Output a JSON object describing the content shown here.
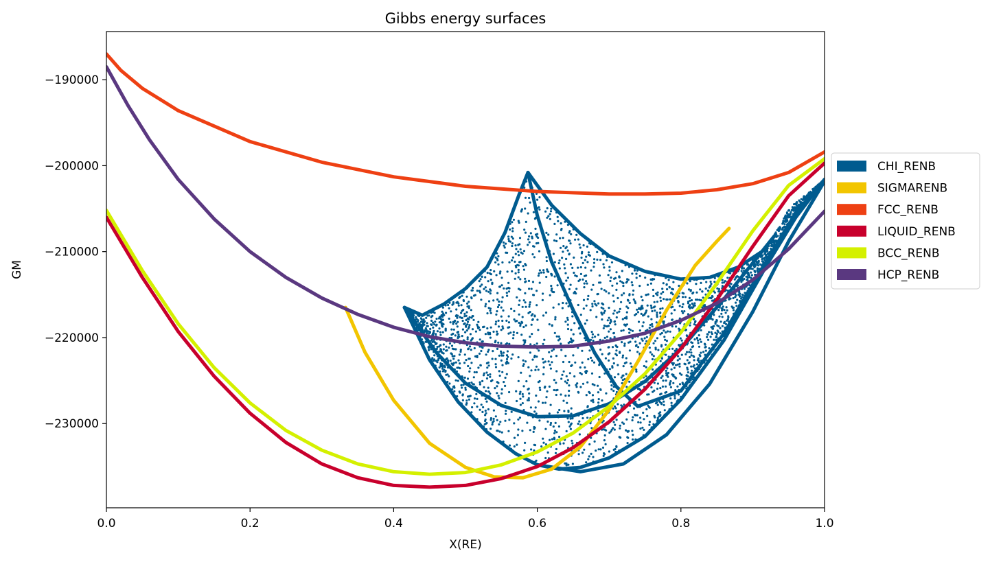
{
  "chart_data": {
    "type": "scatter",
    "title": "Gibbs energy surfaces",
    "xlabel": "X(RE)",
    "ylabel": "GM",
    "xlim": [
      0.0,
      1.0
    ],
    "ylim": [
      -239800,
      -184400
    ],
    "xticks": [
      0.0,
      0.2,
      0.4,
      0.6,
      0.8,
      1.0
    ],
    "xtick_labels": [
      "0.0",
      "0.2",
      "0.4",
      "0.6",
      "0.8",
      "1.0"
    ],
    "yticks": [
      -190000,
      -200000,
      -210000,
      -220000,
      -230000
    ],
    "ytick_labels": [
      "−190000",
      "−200000",
      "−210000",
      "−220000",
      "−230000"
    ],
    "grid": false,
    "legend_position": "outside-right",
    "series": [
      {
        "name": "CHI_RENB",
        "color": "#005b8f",
        "style": "scatter-region",
        "boundaries": [
          [
            [
              0.415,
              -216500
            ],
            [
              0.44,
              -217400
            ],
            [
              0.47,
              -216100
            ],
            [
              0.5,
              -214300
            ],
            [
              0.53,
              -211800
            ],
            [
              0.555,
              -207800
            ],
            [
              0.575,
              -203300
            ],
            [
              0.587,
              -200800
            ]
          ],
          [
            [
              0.587,
              -200800
            ],
            [
              0.62,
              -204600
            ],
            [
              0.66,
              -207900
            ],
            [
              0.7,
              -210500
            ],
            [
              0.75,
              -212300
            ],
            [
              0.8,
              -213200
            ],
            [
              0.84,
              -213000
            ],
            [
              0.88,
              -211800
            ],
            [
              0.92,
              -209600
            ]
          ],
          [
            [
              0.415,
              -216500
            ],
            [
              0.45,
              -222600
            ],
            [
              0.49,
              -227500
            ],
            [
              0.53,
              -231000
            ],
            [
              0.57,
              -233500
            ],
            [
              0.6,
              -234800
            ],
            [
              0.63,
              -235300
            ],
            [
              0.66,
              -235100
            ],
            [
              0.7,
              -234000
            ],
            [
              0.75,
              -231500
            ],
            [
              0.8,
              -227200
            ],
            [
              0.86,
              -220300
            ],
            [
              0.92,
              -211500
            ],
            [
              0.96,
              -206000
            ],
            [
              1.0,
              -201600
            ]
          ],
          [
            [
              0.415,
              -216500
            ],
            [
              0.46,
              -221800
            ],
            [
              0.5,
              -225300
            ],
            [
              0.55,
              -227900
            ],
            [
              0.6,
              -229200
            ],
            [
              0.65,
              -229100
            ],
            [
              0.7,
              -227700
            ],
            [
              0.75,
              -225100
            ],
            [
              0.8,
              -221300
            ],
            [
              0.86,
              -215500
            ],
            [
              0.93,
              -208200
            ]
          ],
          [
            [
              0.587,
              -200800
            ],
            [
              0.6,
              -205800
            ],
            [
              0.62,
              -211200
            ],
            [
              0.65,
              -216800
            ],
            [
              0.68,
              -221800
            ],
            [
              0.71,
              -225700
            ],
            [
              0.74,
              -228000
            ]
          ],
          [
            [
              0.74,
              -228000
            ],
            [
              0.8,
              -226200
            ],
            [
              0.86,
              -219500
            ],
            [
              0.92,
              -211000
            ],
            [
              0.96,
              -205500
            ],
            [
              1.0,
              -201600
            ]
          ],
          [
            [
              0.6,
              -234800
            ],
            [
              0.66,
              -235600
            ],
            [
              0.72,
              -234700
            ],
            [
              0.78,
              -231300
            ],
            [
              0.84,
              -225400
            ],
            [
              0.9,
              -217000
            ],
            [
              0.95,
              -208800
            ],
            [
              1.0,
              -201800
            ]
          ]
        ]
      },
      {
        "name": "SIGMARENB",
        "color": "#f2c500",
        "style": "line",
        "points": [
          [
            0.333,
            -216500
          ],
          [
            0.36,
            -221700
          ],
          [
            0.4,
            -227300
          ],
          [
            0.45,
            -232300
          ],
          [
            0.5,
            -235100
          ],
          [
            0.54,
            -236200
          ],
          [
            0.58,
            -236300
          ],
          [
            0.62,
            -235300
          ],
          [
            0.66,
            -232700
          ],
          [
            0.7,
            -228400
          ],
          [
            0.74,
            -222800
          ],
          [
            0.78,
            -216800
          ],
          [
            0.82,
            -211600
          ],
          [
            0.85,
            -208800
          ],
          [
            0.867,
            -207300
          ]
        ]
      },
      {
        "name": "FCC_RENB",
        "color": "#ee4013",
        "style": "line",
        "points": [
          [
            0.0,
            -187000
          ],
          [
            0.02,
            -188900
          ],
          [
            0.05,
            -191000
          ],
          [
            0.1,
            -193600
          ],
          [
            0.2,
            -197200
          ],
          [
            0.3,
            -199600
          ],
          [
            0.4,
            -201300
          ],
          [
            0.5,
            -202400
          ],
          [
            0.6,
            -203000
          ],
          [
            0.7,
            -203300
          ],
          [
            0.75,
            -203300
          ],
          [
            0.8,
            -203200
          ],
          [
            0.85,
            -202800
          ],
          [
            0.9,
            -202100
          ],
          [
            0.95,
            -200800
          ],
          [
            1.0,
            -198400
          ]
        ]
      },
      {
        "name": "LIQUID_RENB",
        "color": "#c8002c",
        "style": "line",
        "points": [
          [
            0.0,
            -206000
          ],
          [
            0.05,
            -213000
          ],
          [
            0.1,
            -219300
          ],
          [
            0.15,
            -224500
          ],
          [
            0.2,
            -228800
          ],
          [
            0.25,
            -232200
          ],
          [
            0.3,
            -234700
          ],
          [
            0.35,
            -236300
          ],
          [
            0.4,
            -237200
          ],
          [
            0.45,
            -237400
          ],
          [
            0.5,
            -237200
          ],
          [
            0.55,
            -236400
          ],
          [
            0.6,
            -235000
          ],
          [
            0.65,
            -232800
          ],
          [
            0.7,
            -229800
          ],
          [
            0.75,
            -226000
          ],
          [
            0.8,
            -221300
          ],
          [
            0.85,
            -215600
          ],
          [
            0.9,
            -209400
          ],
          [
            0.95,
            -203500
          ],
          [
            1.0,
            -199700
          ]
        ]
      },
      {
        "name": "BCC_RENB",
        "color": "#d4f000",
        "style": "line",
        "points": [
          [
            0.0,
            -205200
          ],
          [
            0.05,
            -212200
          ],
          [
            0.1,
            -218400
          ],
          [
            0.15,
            -223500
          ],
          [
            0.2,
            -227600
          ],
          [
            0.25,
            -230800
          ],
          [
            0.3,
            -233100
          ],
          [
            0.35,
            -234700
          ],
          [
            0.4,
            -235600
          ],
          [
            0.45,
            -235900
          ],
          [
            0.5,
            -235700
          ],
          [
            0.55,
            -234800
          ],
          [
            0.6,
            -233300
          ],
          [
            0.65,
            -231100
          ],
          [
            0.7,
            -228000
          ],
          [
            0.75,
            -224200
          ],
          [
            0.8,
            -219400
          ],
          [
            0.85,
            -213700
          ],
          [
            0.9,
            -207600
          ],
          [
            0.95,
            -202300
          ],
          [
            1.0,
            -199200
          ]
        ]
      },
      {
        "name": "HCP_RENB",
        "color": "#5a3880",
        "style": "line",
        "points": [
          [
            0.0,
            -188500
          ],
          [
            0.03,
            -193000
          ],
          [
            0.06,
            -197000
          ],
          [
            0.1,
            -201600
          ],
          [
            0.15,
            -206200
          ],
          [
            0.2,
            -210000
          ],
          [
            0.25,
            -213000
          ],
          [
            0.3,
            -215400
          ],
          [
            0.35,
            -217300
          ],
          [
            0.4,
            -218800
          ],
          [
            0.45,
            -219900
          ],
          [
            0.5,
            -220600
          ],
          [
            0.55,
            -221000
          ],
          [
            0.6,
            -221100
          ],
          [
            0.65,
            -221000
          ],
          [
            0.7,
            -220400
          ],
          [
            0.75,
            -219500
          ],
          [
            0.8,
            -218000
          ],
          [
            0.85,
            -216000
          ],
          [
            0.9,
            -213300
          ],
          [
            0.95,
            -209700
          ],
          [
            1.0,
            -205300
          ]
        ]
      }
    ]
  }
}
